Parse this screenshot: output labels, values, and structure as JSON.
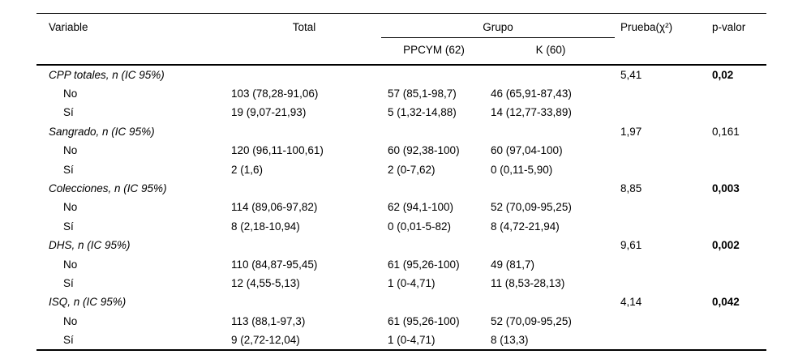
{
  "table": {
    "headers": {
      "variable": "Variable",
      "total": "Total",
      "grupo": "Grupo",
      "ppcym": "PPCYM (62)",
      "k": "K (60)",
      "prueba": "Prueba(χ²)",
      "p_valor": "p-valor"
    },
    "sections": [
      {
        "variable": "CPP totales, n (IC 95%)",
        "prueba": "5,41",
        "p_valor": "0,02",
        "p_bold": true,
        "rows": [
          {
            "label": "No",
            "total": "103 (78,28-91,06)",
            "ppcym": "57 (85,1-98,7)",
            "k": "46 (65,91-87,43)"
          },
          {
            "label": "Sí",
            "total": "19 (9,07-21,93)",
            "ppcym": "5 (1,32-14,88)",
            "k": "14 (12,77-33,89)"
          }
        ]
      },
      {
        "variable": "Sangrado, n (IC 95%)",
        "prueba": "1,97",
        "p_valor": "0,161",
        "p_bold": false,
        "rows": [
          {
            "label": "No",
            "total": "120 (96,11-100,61)",
            "ppcym": "60 (92,38-100)",
            "k": "60 (97,04-100)"
          },
          {
            "label": "Sí",
            "total": "2 (1,6)",
            "ppcym": "2 (0-7,62)",
            "k": "0 (0,11-5,90)"
          }
        ]
      },
      {
        "variable": "Colecciones, n (IC 95%)",
        "prueba": "8,85",
        "p_valor": "0,003",
        "p_bold": true,
        "rows": [
          {
            "label": "No",
            "total": "114 (89,06-97,82)",
            "ppcym": "62 (94,1-100)",
            "k": "52 (70,09-95,25)"
          },
          {
            "label": "Sí",
            "total": "8 (2,18-10,94)",
            "ppcym": "0 (0,01-5-82)",
            "k": "8 (4,72-21,94)"
          }
        ]
      },
      {
        "variable": "DHS, n (IC 95%)",
        "prueba": "9,61",
        "p_valor": "0,002",
        "p_bold": true,
        "rows": [
          {
            "label": "No",
            "total": "110 (84,87-95,45)",
            "ppcym": "61 (95,26-100)",
            "k": "49 (81,7)"
          },
          {
            "label": "Sí",
            "total": "12 (4,55-5,13)",
            "ppcym": "1 (0-4,71)",
            "k": "11 (8,53-28,13)"
          }
        ]
      },
      {
        "variable": "ISQ, n (IC 95%)",
        "prueba": "4,14",
        "p_valor": "0,042",
        "p_bold": true,
        "rows": [
          {
            "label": "No",
            "total": "113 (88,1-97,3)",
            "ppcym": "61 (95,26-100)",
            "k": "52 (70,09-95,25)"
          },
          {
            "label": "Sí",
            "total": "9 (2,72-12,04)",
            "ppcym": "1 (0-4,71)",
            "k": "8 (13,3)"
          }
        ]
      }
    ]
  }
}
